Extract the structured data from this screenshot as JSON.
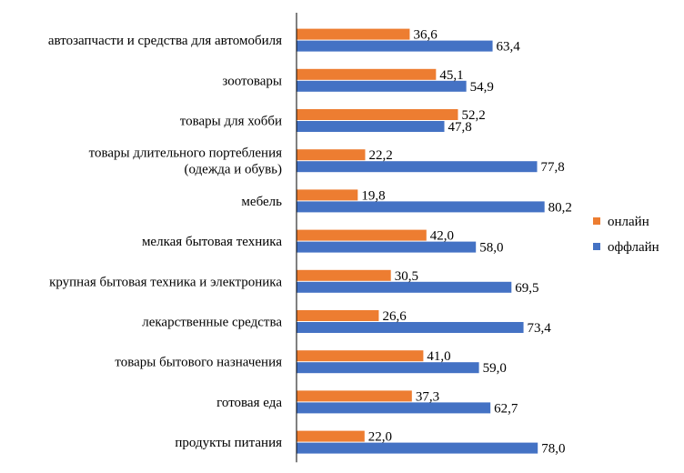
{
  "chart_data": {
    "type": "bar",
    "orientation": "horizontal",
    "title": "",
    "xlabel": "",
    "ylabel": "",
    "xlim": [
      0,
      100
    ],
    "grid": false,
    "legend_position": "right",
    "categories": [
      {
        "lines": [
          "автозапчасти и средства для автомобиля"
        ]
      },
      {
        "lines": [
          "зоотовары"
        ]
      },
      {
        "lines": [
          "товары для хобби"
        ]
      },
      {
        "lines": [
          "товары длительного портебления",
          "(одежда и обувь)"
        ]
      },
      {
        "lines": [
          "мебель"
        ]
      },
      {
        "lines": [
          "мелкая бытовая техника"
        ]
      },
      {
        "lines": [
          "крупная бытовая техника и электроника"
        ]
      },
      {
        "lines": [
          "лекарственные средства"
        ]
      },
      {
        "lines": [
          "товары бытового назначения"
        ]
      },
      {
        "lines": [
          "готовая еда"
        ]
      },
      {
        "lines": [
          "продукты питания"
        ]
      }
    ],
    "series": [
      {
        "name": "онлайн",
        "color": "#ED7D31",
        "values": [
          36.6,
          45.1,
          52.2,
          22.2,
          19.8,
          42.0,
          30.5,
          26.6,
          41.0,
          37.3,
          22.0
        ],
        "labels": [
          "36,6",
          "45,1",
          "52,2",
          "22,2",
          "19,8",
          "42,0",
          "30,5",
          "26,6",
          "41,0",
          "37,3",
          "22,0"
        ]
      },
      {
        "name": "оффлайн",
        "color": "#4472C4",
        "values": [
          63.4,
          54.9,
          47.8,
          77.8,
          80.2,
          58.0,
          69.5,
          73.4,
          59.0,
          62.7,
          78.0
        ],
        "labels": [
          "63,4",
          "54,9",
          "47,8",
          "77,8",
          "80,2",
          "58,0",
          "69,5",
          "73,4",
          "59,0",
          "62,7",
          "78,0"
        ]
      }
    ]
  }
}
